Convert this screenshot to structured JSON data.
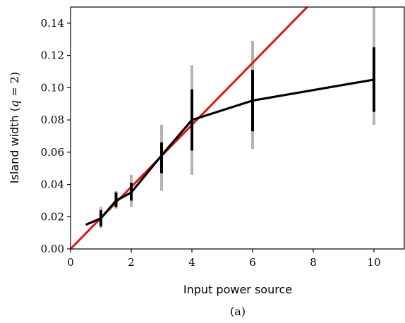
{
  "chart_data": {
    "type": "line",
    "title": "",
    "xlabel": "Input power source",
    "ylabel_prefix": "Island width (",
    "ylabel_var": "q",
    "ylabel_suffix": " = 2)",
    "caption": "(a)",
    "xlim": [
      0,
      11
    ],
    "ylim": [
      0,
      0.15
    ],
    "xticks": [
      0,
      2,
      4,
      6,
      8,
      10
    ],
    "xtick_labels": [
      "0",
      "2",
      "4",
      "6",
      "8",
      "10"
    ],
    "yticks": [
      0.0,
      0.02,
      0.04,
      0.06,
      0.08,
      0.1,
      0.12,
      0.14
    ],
    "ytick_labels": [
      "0.00",
      "0.02",
      "0.04",
      "0.06",
      "0.08",
      "0.10",
      "0.12",
      "0.14"
    ],
    "grid": false,
    "colors": {
      "data": "#000000",
      "fit": "#e8120f",
      "outer_error": "#b3b3b3",
      "inner_error": "#000000"
    },
    "series": [
      {
        "values_x": [
          0.5,
          1,
          1.5,
          2,
          3,
          4,
          6,
          10
        ],
        "values_y": [
          0.015,
          0.019,
          0.03,
          0.035,
          0.058,
          0.08,
          0.092,
          0.105
        ],
        "error_inner": [
          {
            "x": 1,
            "lo": 0.014,
            "hi": 0.024
          },
          {
            "x": 1.5,
            "lo": 0.026,
            "hi": 0.035
          },
          {
            "x": 2,
            "lo": 0.03,
            "hi": 0.041
          },
          {
            "x": 3,
            "lo": 0.047,
            "hi": 0.066
          },
          {
            "x": 4,
            "lo": 0.061,
            "hi": 0.099
          },
          {
            "x": 6,
            "lo": 0.073,
            "hi": 0.111
          },
          {
            "x": 10,
            "lo": 0.085,
            "hi": 0.125
          }
        ],
        "error_outer": [
          {
            "x": 1,
            "lo": 0.013,
            "hi": 0.026
          },
          {
            "x": 1.5,
            "lo": 0.025,
            "hi": 0.036
          },
          {
            "x": 2,
            "lo": 0.026,
            "hi": 0.046
          },
          {
            "x": 3,
            "lo": 0.036,
            "hi": 0.077
          },
          {
            "x": 4,
            "lo": 0.046,
            "hi": 0.114
          },
          {
            "x": 6,
            "lo": 0.062,
            "hi": 0.129
          },
          {
            "x": 10,
            "lo": 0.077,
            "hi": 0.15
          }
        ]
      },
      {
        "values_x": [
          0,
          7.8
        ],
        "values_y": [
          0,
          0.15
        ]
      }
    ]
  }
}
